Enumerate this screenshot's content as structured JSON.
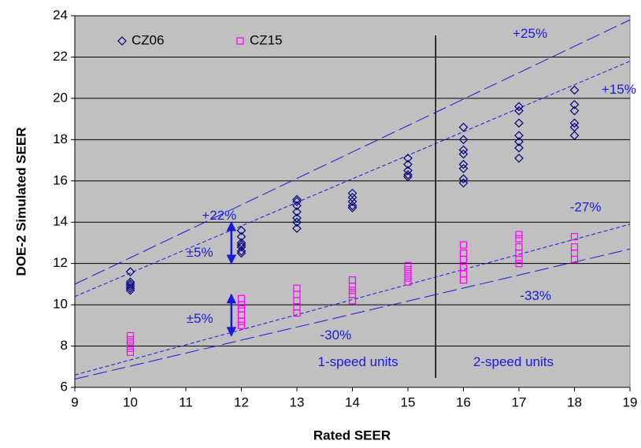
{
  "chart_data": {
    "type": "scatter",
    "x_label": "Rated SEER",
    "y_label": "DOE-2 Simulated SEER",
    "xlim": [
      9,
      19
    ],
    "xticks": [
      9,
      10,
      11,
      12,
      13,
      14,
      15,
      16,
      17,
      18,
      19
    ],
    "ylim": [
      6,
      24
    ],
    "yticks": [
      6,
      8,
      10,
      12,
      14,
      16,
      18,
      20,
      22,
      24
    ],
    "grid": true,
    "legend": "top-left",
    "series": [
      {
        "name": "CZ06",
        "color": "#000080",
        "marker": "diamond",
        "x": [
          10,
          10,
          10,
          10,
          10,
          10,
          12,
          12,
          12,
          12,
          12,
          12,
          12,
          13,
          13,
          13,
          13,
          13,
          13,
          13,
          14,
          14,
          14,
          14,
          14,
          15,
          15,
          15,
          15,
          15,
          16,
          16,
          16,
          16,
          16,
          16,
          16,
          16,
          17,
          17,
          17,
          17,
          17,
          17,
          17,
          18,
          18,
          18,
          18,
          18,
          18
        ],
        "values": [
          11.6,
          11.1,
          11.0,
          10.9,
          10.8,
          10.7,
          13.6,
          13.3,
          13.0,
          12.9,
          12.8,
          12.6,
          12.5,
          15.1,
          15.0,
          14.8,
          14.5,
          14.2,
          14.0,
          13.7,
          15.4,
          15.2,
          15.0,
          14.8,
          14.7,
          17.1,
          16.8,
          16.5,
          16.3,
          16.2,
          18.6,
          18.0,
          17.5,
          17.3,
          16.8,
          16.6,
          16.1,
          15.9,
          19.6,
          19.4,
          18.8,
          18.2,
          17.9,
          17.6,
          17.1,
          20.4,
          19.7,
          19.4,
          18.8,
          18.6,
          18.2
        ]
      },
      {
        "name": "CZ15",
        "color": "#ff00ff",
        "marker": "square",
        "x": [
          10,
          10,
          10,
          10,
          10,
          12,
          12,
          12,
          12,
          12,
          12,
          13,
          13,
          13,
          13,
          13,
          14,
          14,
          14,
          14,
          14,
          15,
          15,
          15,
          15,
          15,
          16,
          16,
          16,
          16,
          16,
          16,
          17,
          17,
          17,
          17,
          17,
          17,
          18,
          18,
          18,
          18
        ],
        "values": [
          8.5,
          8.3,
          8.1,
          7.9,
          7.7,
          10.3,
          10.0,
          9.8,
          9.5,
          9.2,
          9.0,
          10.8,
          10.5,
          10.2,
          9.9,
          9.6,
          11.2,
          10.9,
          10.7,
          10.5,
          10.2,
          11.9,
          11.7,
          11.5,
          11.3,
          11.1,
          12.9,
          12.5,
          12.2,
          11.8,
          11.5,
          11.2,
          13.4,
          13.2,
          12.8,
          12.5,
          12.2,
          12.0,
          13.3,
          12.8,
          12.5,
          12.2
        ]
      }
    ],
    "ref_lines": [
      {
        "x": [
          9,
          19
        ],
        "values": [
          11.0,
          23.8
        ],
        "dash": "long"
      },
      {
        "x": [
          9,
          19
        ],
        "values": [
          10.4,
          21.8
        ],
        "dash": "short"
      },
      {
        "x": [
          9,
          19
        ],
        "values": [
          6.6,
          13.9
        ],
        "dash": "short"
      },
      {
        "x": [
          9,
          19
        ],
        "values": [
          6.4,
          12.7
        ],
        "dash": "long"
      }
    ],
    "divider_x": 15.5,
    "annotations": [
      "+25%",
      "+15%",
      "+22%",
      "±5%",
      "±5%",
      "-30%",
      "-27%",
      "-33%",
      "1-speed units",
      "2-speed units"
    ]
  }
}
